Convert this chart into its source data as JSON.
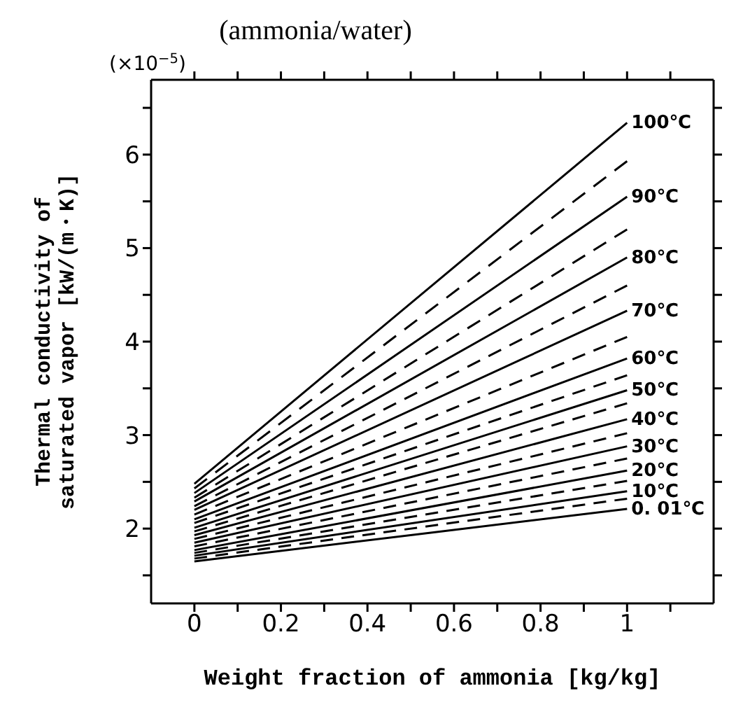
{
  "chart_data": {
    "type": "line",
    "title": "(ammonia/water)",
    "xlabel": "Weight fraction of ammonia [kg/kg]",
    "ylabel": "Thermal conductivity of\nsaturated vapor [kW/(m・K)]",
    "annotations": [
      "(×10$^{−5}$)"
    ],
    "xlim": [
      -0.1,
      1.2
    ],
    "ylim": [
      1.2,
      6.8
    ],
    "xticks": [
      0,
      {
        "value": 0.1,
        "label": null
      },
      0.2,
      {
        "value": 0.3,
        "label": null
      },
      0.4,
      {
        "value": 0.5,
        "label": null
      },
      0.6,
      {
        "value": 0.7,
        "label": null
      },
      0.8,
      {
        "value": 0.9,
        "label": null
      },
      1,
      {
        "value": 1.1,
        "label": null
      }
    ],
    "yticks": [
      {
        "value": 1.5,
        "label": null
      },
      2,
      {
        "value": 2.5,
        "label": null
      },
      3,
      {
        "value": 3.5,
        "label": null
      },
      4,
      {
        "value": 4.5,
        "label": null
      },
      5,
      {
        "value": 5.5,
        "label": null
      },
      6,
      {
        "value": 6.5,
        "label": null
      }
    ],
    "marker": "none",
    "legend": "right",
    "x": [
      0,
      1
    ],
    "series": [
      {
        "name": "0. 01℃",
        "color": "#000000",
        "values": [
          1.65,
          2.21
        ],
        "line_style": "solid"
      },
      {
        "color": "#000000",
        "values": [
          1.68,
          2.32
        ],
        "line_style": "dashed"
      },
      {
        "name": "10℃",
        "color": "#000000",
        "values": [
          1.71,
          2.4
        ],
        "line_style": "solid"
      },
      {
        "color": "#000000",
        "values": [
          1.74,
          2.51
        ],
        "line_style": "dashed"
      },
      {
        "name": "20℃",
        "color": "#000000",
        "values": [
          1.77,
          2.62
        ],
        "line_style": "solid"
      },
      {
        "color": "#000000",
        "values": [
          1.81,
          2.75
        ],
        "line_style": "dashed"
      },
      {
        "name": "30℃",
        "color": "#000000",
        "values": [
          1.85,
          2.88
        ],
        "line_style": "solid"
      },
      {
        "color": "#000000",
        "values": [
          1.89,
          3.02
        ],
        "line_style": "dashed"
      },
      {
        "name": "40℃",
        "color": "#000000",
        "values": [
          1.93,
          3.17
        ],
        "line_style": "solid"
      },
      {
        "color": "#000000",
        "values": [
          1.97,
          3.34
        ],
        "line_style": "dashed"
      },
      {
        "name": "50℃",
        "color": "#000000",
        "values": [
          2.01,
          3.48
        ],
        "line_style": "solid"
      },
      {
        "color": "#000000",
        "values": [
          2.06,
          3.64
        ],
        "line_style": "dashed"
      },
      {
        "name": "60℃",
        "color": "#000000",
        "values": [
          2.1,
          3.82
        ],
        "line_style": "solid"
      },
      {
        "color": "#000000",
        "values": [
          2.15,
          4.05
        ],
        "line_style": "dashed"
      },
      {
        "name": "70℃",
        "color": "#000000",
        "values": [
          2.2,
          4.33
        ],
        "line_style": "solid"
      },
      {
        "color": "#000000",
        "values": [
          2.24,
          4.6
        ],
        "line_style": "dashed"
      },
      {
        "name": "80℃",
        "color": "#000000",
        "values": [
          2.29,
          4.9
        ],
        "line_style": "solid"
      },
      {
        "color": "#000000",
        "values": [
          2.33,
          5.2
        ],
        "line_style": "dashed"
      },
      {
        "name": "90℃",
        "color": "#000000",
        "values": [
          2.38,
          5.55
        ],
        "line_style": "solid"
      },
      {
        "color": "#000000",
        "values": [
          2.43,
          5.93
        ],
        "line_style": "dashed"
      },
      {
        "name": "100℃",
        "color": "#000000",
        "values": [
          2.48,
          6.34
        ],
        "line_style": "solid"
      }
    ]
  }
}
